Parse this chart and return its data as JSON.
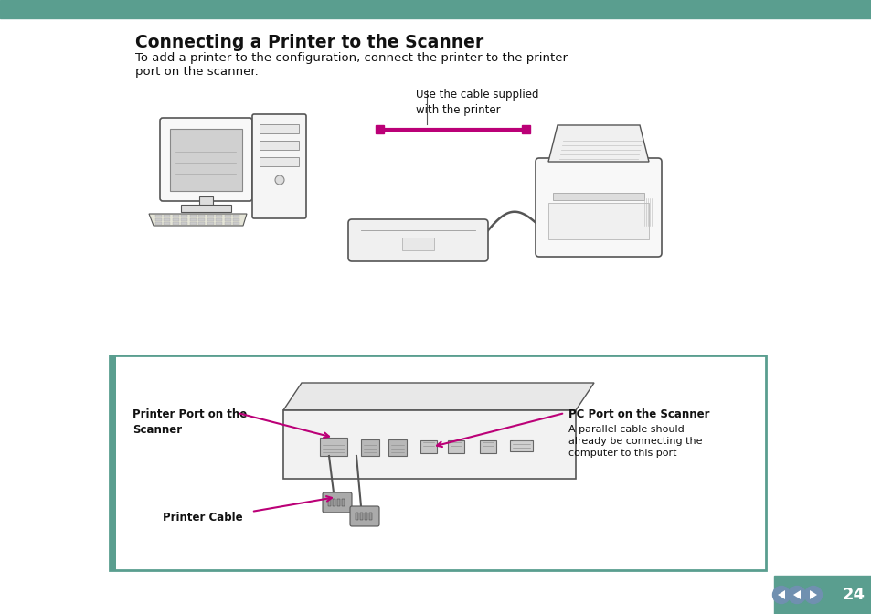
{
  "bg_color": "#ffffff",
  "teal_bar_color": "#5a9e8f",
  "teal_box_border": "#5a9e8f",
  "title": "Connecting a Printer to the Scanner",
  "body_line1": "To add a printer to the configuration, connect the printer to the printer",
  "body_line2": "port on the scanner.",
  "annotation_cable": "Use the cable supplied\nwith the printer",
  "label_printer_port": "Printer Port on the\nScanner",
  "label_pc_port": "PC Port on the Scanner",
  "label_pc_port_body": "A parallel cable should\nalready be connecting the\ncomputer to this port",
  "label_printer_cable": "Printer Cable",
  "page_number": "24",
  "magenta": "#bb0077",
  "teal_nav": "#5a9e8f",
  "nav_circle": "#7090b0",
  "dark_text": "#111111",
  "line_color": "#555555"
}
